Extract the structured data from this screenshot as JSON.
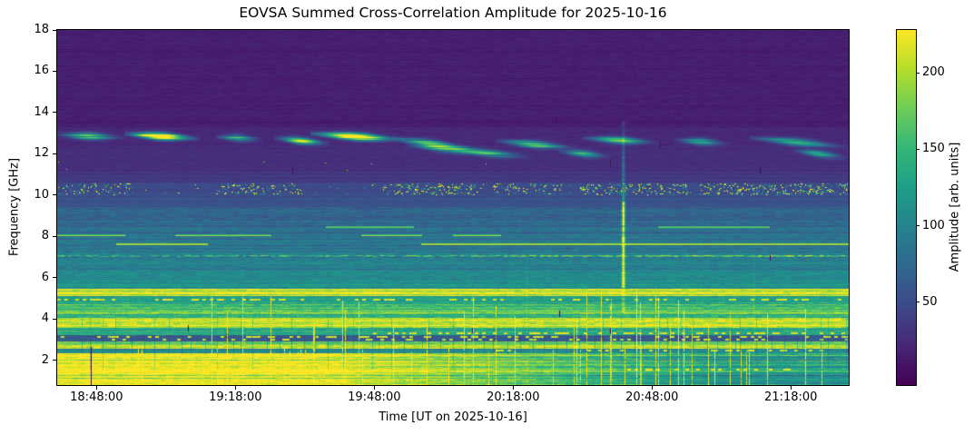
{
  "chart_data": {
    "type": "heatmap",
    "title": "EOVSA Summed Cross-Correlation Amplitude for 2025-10-16",
    "xlabel": "Time [UT on 2025-10-16]",
    "ylabel": "Frequency [GHz]",
    "colorbar_label": "Amplitude [arb. units]",
    "colormap": "viridis",
    "grid": false,
    "x_ticks": [
      "18:48:00",
      "19:18:00",
      "19:48:00",
      "20:18:00",
      "20:48:00",
      "21:18:00"
    ],
    "x_range": [
      "18:39:30",
      "21:30:30"
    ],
    "y_ticks": [
      2,
      4,
      6,
      8,
      10,
      12,
      14,
      16,
      18
    ],
    "freq_range_ghz": [
      0.8,
      18
    ],
    "colorbar_ticks": [
      50,
      100,
      150,
      200
    ],
    "amplitude_range": [
      -4,
      228
    ],
    "background_bands": [
      {
        "f": [
          18.0,
          13.3
        ],
        "amp": 16,
        "note": "quiet dark-purple background"
      },
      {
        "f": [
          13.3,
          12.35
        ],
        "amp": 22,
        "note": "band hosting drifting wispy emission"
      },
      {
        "f": [
          12.35,
          11.15
        ],
        "amp": 27
      },
      {
        "f": [
          11.15,
          10.62
        ],
        "amp": 35
      },
      {
        "f": [
          10.62,
          10.05
        ],
        "amp": 47,
        "note": "RFI speckle zone ~10.1-10.6 GHz"
      },
      {
        "f": [
          10.05,
          9.4
        ],
        "amp": 55
      },
      {
        "f": [
          9.4,
          8.75
        ],
        "amp": 68
      },
      {
        "f": [
          8.75,
          8.15
        ],
        "amp": 78
      },
      {
        "f": [
          8.15,
          7.3
        ],
        "amp": 88
      },
      {
        "f": [
          7.3,
          6.4
        ],
        "amp": 98
      },
      {
        "f": [
          6.4,
          5.75
        ],
        "amp": 106
      },
      {
        "f": [
          5.75,
          5.45
        ],
        "amp": 112
      },
      {
        "f": [
          5.45,
          5.1
        ],
        "amp": 224,
        "note": "bright yellow band ~5.3 GHz"
      },
      {
        "f": [
          5.1,
          4.82
        ],
        "amp": 122
      },
      {
        "f": [
          4.82,
          4.52
        ],
        "amp": 150
      },
      {
        "f": [
          4.52,
          4.25
        ],
        "amp": 172
      },
      {
        "f": [
          4.25,
          4.05
        ],
        "amp": 140
      },
      {
        "f": [
          4.05,
          3.55
        ],
        "amp": 203,
        "note": "bright yellow band ~3.8 GHz"
      },
      {
        "f": [
          3.55,
          3.2
        ],
        "amp": 135
      },
      {
        "f": [
          3.2,
          2.9
        ],
        "amp": 60,
        "note": "dark blue lane with RFI dashes"
      },
      {
        "f": [
          2.9,
          2.75
        ],
        "amp": 175
      },
      {
        "f": [
          2.75,
          2.55
        ],
        "amp": 208,
        "note": "narrow yellow band ~2.65 GHz"
      },
      {
        "f": [
          2.55,
          2.32
        ],
        "amp": 112,
        "note": "teal lane with dark dropout ticks"
      },
      {
        "f": [
          2.32,
          0.8
        ],
        "amp": 226,
        "note": "saturated low-frequency band; turns green after ~19:40"
      }
    ],
    "spectral_lines": [
      {
        "f": 8.05,
        "amp": 205,
        "segments": [
          [
            0.0,
            0.085
          ],
          [
            0.15,
            0.27
          ],
          [
            0.385,
            0.46
          ],
          [
            0.5,
            0.56
          ]
        ]
      },
      {
        "f": 7.62,
        "amp": 232,
        "segments": [
          [
            0.075,
            0.19
          ],
          [
            0.46,
            1.0
          ]
        ]
      },
      {
        "f": 7.05,
        "amp": 148,
        "dashy": true,
        "segments": [
          [
            0.0,
            1.0
          ]
        ]
      },
      {
        "f": 8.45,
        "amp": 195,
        "segments": [
          [
            0.34,
            0.45
          ],
          [
            0.76,
            0.9
          ]
        ]
      }
    ],
    "dash_rows": [
      {
        "f": 4.93,
        "amp": 215,
        "prob": 0.3,
        "x": [
          0.0,
          1.0
        ]
      },
      {
        "f": 3.32,
        "amp": 220,
        "prob": 0.35,
        "x": [
          0.4,
          1.0
        ]
      },
      {
        "f": 3.12,
        "amp": 210,
        "prob": 0.22,
        "x": [
          0.0,
          1.0
        ]
      },
      {
        "f": 3.0,
        "amp": 210,
        "prob": 0.18,
        "x": [
          0.0,
          1.0
        ]
      },
      {
        "f": 2.45,
        "amp": 215,
        "prob": 0.25,
        "x": [
          0.55,
          1.0
        ]
      },
      {
        "f": 1.55,
        "amp": 225,
        "prob": 0.3,
        "x": [
          0.72,
          0.93
        ]
      }
    ],
    "rfi_speckle_band": {
      "f_lo": 10.05,
      "f_hi": 10.58,
      "base_prob": 0.05,
      "dot_count": 1600,
      "clusters": [
        [
          0.0,
          0.09,
          0.5
        ],
        [
          0.2,
          0.31,
          0.55
        ],
        [
          0.41,
          0.53,
          0.85
        ],
        [
          0.55,
          0.64,
          0.6
        ],
        [
          0.66,
          0.8,
          0.85
        ],
        [
          0.81,
          1.0,
          1.0
        ]
      ]
    },
    "sparse_dots": {
      "f_lo": 11.2,
      "f_hi": 11.7,
      "count": 7
    },
    "drifting_wisps": [
      {
        "x0": 0.0,
        "x1": 0.085,
        "f0": 12.95,
        "f1": 12.8,
        "peak": 130
      },
      {
        "x0": 0.085,
        "x1": 0.18,
        "f0": 13.0,
        "f1": 12.75,
        "peak": 265
      },
      {
        "x0": 0.2,
        "x1": 0.26,
        "f0": 12.85,
        "f1": 12.7,
        "peak": 120
      },
      {
        "x0": 0.275,
        "x1": 0.345,
        "f0": 12.8,
        "f1": 12.5,
        "peak": 160
      },
      {
        "x0": 0.32,
        "x1": 0.44,
        "f0": 13.0,
        "f1": 12.7,
        "peak": 275
      },
      {
        "x0": 0.425,
        "x1": 0.52,
        "f0": 12.75,
        "f1": 12.3,
        "peak": 140
      },
      {
        "x0": 0.44,
        "x1": 0.56,
        "f0": 12.45,
        "f1": 12.05,
        "peak": 120
      },
      {
        "x0": 0.5,
        "x1": 0.6,
        "f0": 12.2,
        "f1": 11.85,
        "peak": 100
      },
      {
        "x0": 0.555,
        "x1": 0.655,
        "f0": 12.65,
        "f1": 12.3,
        "peak": 150
      },
      {
        "x0": 0.635,
        "x1": 0.7,
        "f0": 12.15,
        "f1": 11.85,
        "peak": 110
      },
      {
        "x0": 0.665,
        "x1": 0.76,
        "f0": 12.8,
        "f1": 12.55,
        "peak": 130
      },
      {
        "x0": 0.78,
        "x1": 0.85,
        "f0": 12.7,
        "f1": 12.5,
        "peak": 100
      },
      {
        "x0": 0.875,
        "x1": 1.0,
        "f0": 12.8,
        "f1": 12.35,
        "peak": 115
      },
      {
        "x0": 0.93,
        "x1": 1.0,
        "f0": 12.2,
        "f1": 11.8,
        "peak": 90
      }
    ],
    "burst": {
      "time_ut": "20:41:40",
      "f_top": 13.6,
      "f_peak_top": 9.7,
      "f_bottom": 5.5,
      "peak_amplitude": 235,
      "note": "narrow vertical burst column"
    },
    "faint_vertical_lines": [
      0.593,
      0.88
    ],
    "vertical_lines": {
      "yellow_count": 58,
      "dark_count": 66
    },
    "dropouts": [
      {
        "x": 0.0424,
        "f0": 2.65,
        "f1": 0.85
      },
      {
        "x": 0.165,
        "f0": 3.7,
        "f1": 3.45
      },
      {
        "x": 0.297,
        "f0": 11.3,
        "f1": 11.05
      },
      {
        "x": 0.63,
        "f0": 13.8,
        "f1": 13.5
      },
      {
        "x": 0.634,
        "f0": 4.4,
        "f1": 4.15
      },
      {
        "x": 0.698,
        "f0": 11.75,
        "f1": 11.45
      },
      {
        "x": 0.698,
        "f0": 3.55,
        "f1": 3.3
      },
      {
        "x": 0.761,
        "f0": 12.6,
        "f1": 12.35
      },
      {
        "x": 0.888,
        "f0": 11.35,
        "f1": 11.1
      },
      {
        "x": 0.9,
        "f0": 7.1,
        "f1": 6.85
      },
      {
        "x": 0.524,
        "f0": 3.55,
        "f1": 3.35
      }
    ],
    "viridis_stops": [
      [
        68,
        1,
        84
      ],
      [
        72,
        40,
        120
      ],
      [
        62,
        74,
        137
      ],
      [
        49,
        104,
        142
      ],
      [
        38,
        130,
        142
      ],
      [
        31,
        158,
        137
      ],
      [
        53,
        183,
        121
      ],
      [
        109,
        205,
        89
      ],
      [
        180,
        222,
        44
      ],
      [
        253,
        231,
        37
      ]
    ]
  }
}
